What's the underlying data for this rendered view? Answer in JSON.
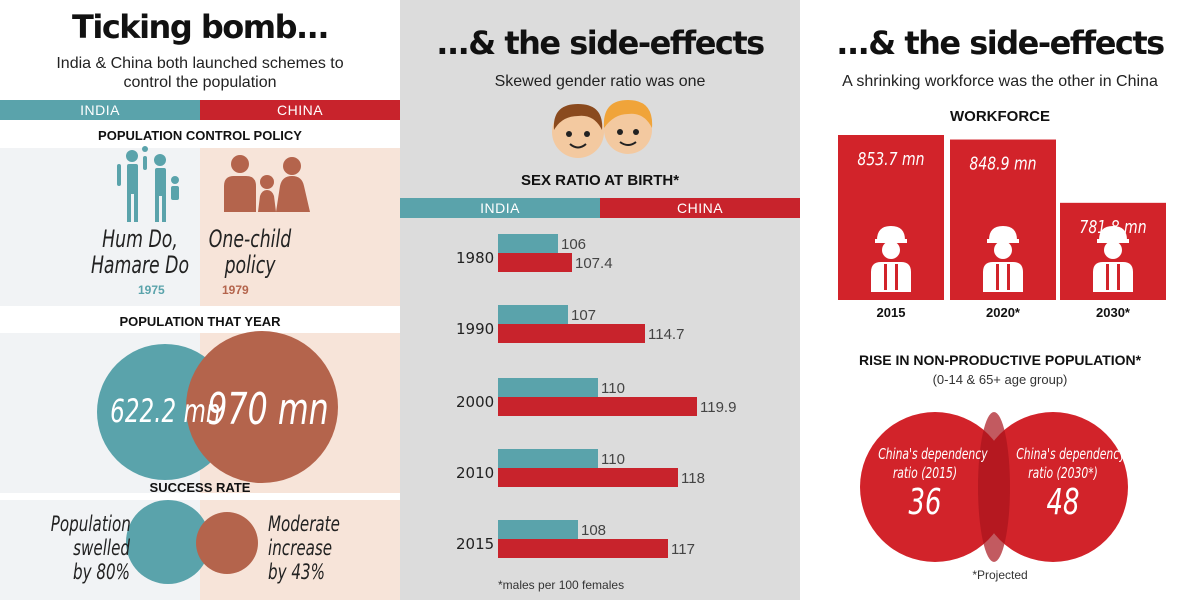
{
  "colors": {
    "india": "#5aa3ab",
    "china": "#c8232c",
    "china_brown": "#b4644c",
    "peach": "#f7e4d9",
    "light": "#f1f3f5",
    "panel_gray": "#dcdcdc"
  },
  "left": {
    "title": "Ticking bomb...",
    "subtitle_line1": "India & China both launched schemes to",
    "subtitle_line2": "control the population",
    "india_label": "INDIA",
    "china_label": "CHINA",
    "policy_heading": "POPULATION CONTROL POLICY",
    "india_policy_line1": "Hum Do,",
    "india_policy_line2": "Hamare Do",
    "india_year": "1975",
    "china_policy_line1": "One-child",
    "china_policy_line2": "policy",
    "china_year": "1979",
    "population_heading": "POPULATION THAT YEAR",
    "india_population": "622.2 mn",
    "china_population": "970 mn",
    "success_heading": "SUCCESS RATE",
    "india_success_line1": "Population",
    "india_success_line2": "swelled",
    "india_success_line3": "by 80%",
    "china_success_line1": "Moderate",
    "china_success_line2": "increase",
    "china_success_line3": "by 43%",
    "icons": [
      "family-two-kids-icon",
      "family-one-child-icon"
    ]
  },
  "middle": {
    "title": "...& the side-effects",
    "subtitle": "Skewed gender ratio was one",
    "chart_heading": "SEX RATIO AT BIRTH*",
    "india_label": "INDIA",
    "china_label": "CHINA",
    "footnote": "*males per 100 females",
    "icons": [
      "boy-face-icon",
      "girl-face-icon"
    ]
  },
  "right": {
    "title": "...& the side-effects",
    "subtitle": "A shrinking workforce was the other in China",
    "workforce_heading": "WORKFORCE",
    "rise_heading": "RISE IN NON-PRODUCTIVE POPULATION*",
    "rise_sub": "(0-14 & 65+ age group)",
    "dep_left_line1": "China's dependency",
    "dep_left_line2": "ratio (2015)",
    "dep_left_value": "36",
    "dep_right_line1": "China's dependency",
    "dep_right_line2": "ratio (2030*)",
    "dep_right_value": "48",
    "footnote": "*Projected",
    "icons": [
      "worker-helmet-icon"
    ]
  },
  "chart_data": [
    {
      "type": "bar",
      "orientation": "horizontal",
      "title": "SEX RATIO AT BIRTH*",
      "categories": [
        "1980",
        "1990",
        "2000",
        "2010",
        "2015"
      ],
      "series": [
        {
          "name": "INDIA",
          "values": [
            106,
            107,
            110,
            110,
            108
          ]
        },
        {
          "name": "CHINA",
          "values": [
            107.4,
            114.7,
            119.9,
            118,
            117
          ]
        }
      ],
      "value_labels": {
        "INDIA": [
          "106",
          "107",
          "110",
          "110",
          "108"
        ],
        "CHINA": [
          "107.4",
          "114.7",
          "119.9",
          "118",
          "117"
        ]
      },
      "note": "*males per 100 females"
    },
    {
      "type": "bar",
      "title": "WORKFORCE",
      "categories": [
        "2015",
        "2020*",
        "2030*"
      ],
      "values": [
        853.7,
        848.9,
        781.8
      ],
      "value_labels": [
        "853.7 mn",
        "848.9 mn",
        "781.8 mn"
      ]
    }
  ]
}
